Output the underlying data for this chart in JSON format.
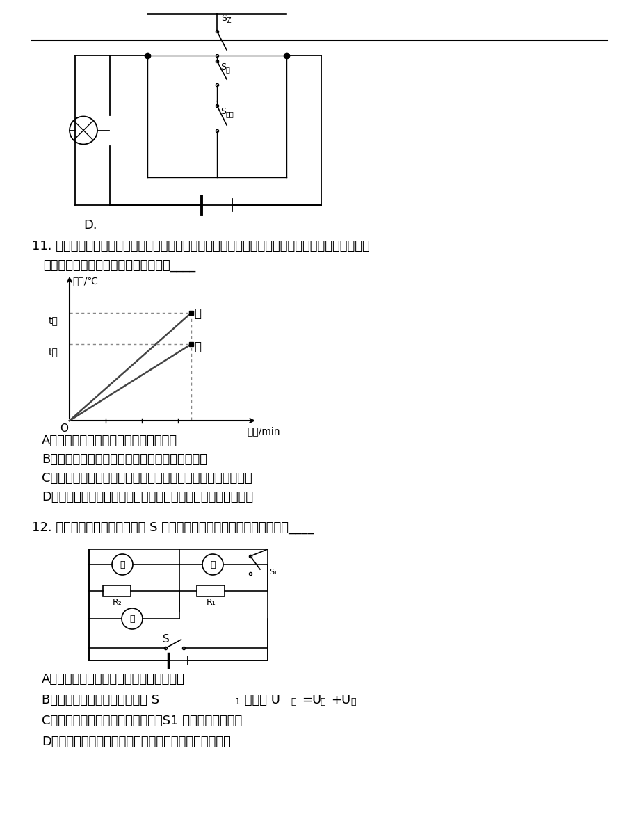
{
  "bg_color": "#ffffff",
  "q11_text_line1": "11. 两个相同的容器分别装有质量相同的甲、乙两种液体，用同一热源分别加热，液体温度与加热时",
  "q11_text_line2": "间关系如图所示，下列说法不正确的是____",
  "q11_options": [
    "A．甲液体的比热容大于乙液体的比热容",
    "B．如果升高相同的温度，两液体吸收的热量相同",
    "C．加热相同的时间，甲液体吸收的热量大于乙液体吸收的热量",
    "D．加热相同的时间，甲液体温度升高的比乙液体温度升高的多"
  ],
  "q12_text": "12. 在如图所示的电路中，开关 S 闭合后下列所列的各种情况中正确的是____",
  "q12_options_A": "A．电路中甲表和乙表可以同时是电流表，",
  "q12_options_C": "C．如甲是电压表，乙、丙电流表，S1 断开形成串联电路",
  "q12_options_D": "D．如果电路是并联电路，则乙表的示数大于丙表的示数",
  "D_label": "D."
}
